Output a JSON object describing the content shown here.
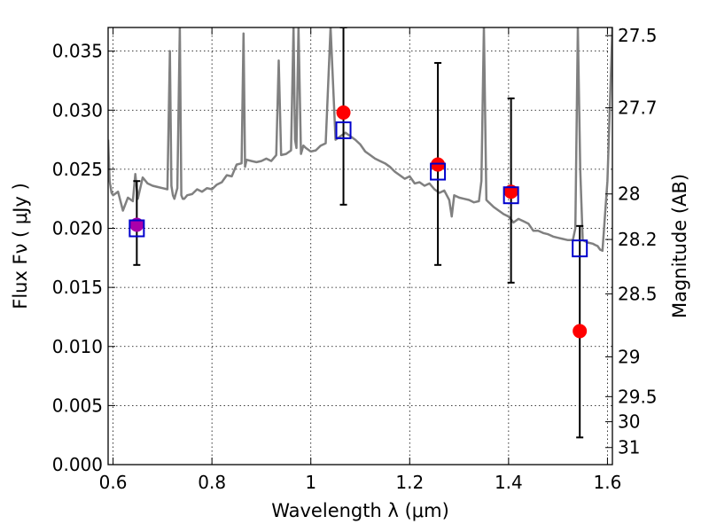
{
  "chart_data": {
    "type": "scatter",
    "xlabel": "Wavelength  λ (μm)",
    "ylabel": "Flux  Fν  ( μJy )",
    "y2label": "Magnitude (AB)",
    "xlim": [
      0.59,
      1.61
    ],
    "ylim": [
      0.0,
      0.037
    ],
    "grid": true,
    "x_ticks": [
      {
        "value": 0.6,
        "label": "0.6"
      },
      {
        "value": 0.8,
        "label": "0.8"
      },
      {
        "value": 1.0,
        "label": "1"
      },
      {
        "value": 1.2,
        "label": "1.2"
      },
      {
        "value": 1.4,
        "label": "1.4"
      },
      {
        "value": 1.6,
        "label": "1.6"
      }
    ],
    "y_ticks": [
      {
        "value": 0.0,
        "label": "0.000"
      },
      {
        "value": 0.005,
        "label": "0.005"
      },
      {
        "value": 0.01,
        "label": "0.010"
      },
      {
        "value": 0.015,
        "label": "0.015"
      },
      {
        "value": 0.02,
        "label": "0.020"
      },
      {
        "value": 0.025,
        "label": "0.025"
      },
      {
        "value": 0.03,
        "label": "0.030"
      },
      {
        "value": 0.035,
        "label": "0.035"
      }
    ],
    "y2_ticks": [
      {
        "mag": 27.5,
        "label": "27.5"
      },
      {
        "mag": 27.7,
        "label": "27.7"
      },
      {
        "mag": 28,
        "label": "28"
      },
      {
        "mag": 28.2,
        "label": "28.2"
      },
      {
        "mag": 28.5,
        "label": "28.5"
      },
      {
        "mag": 29,
        "label": "29"
      },
      {
        "mag": 29.5,
        "label": "29.5"
      },
      {
        "mag": 30,
        "label": "30"
      },
      {
        "mag": 31,
        "label": "31"
      }
    ],
    "colors": {
      "model_line": "#808080",
      "observed_points": "#ff0000",
      "model_points": "#0000cc",
      "first_point": "#aa00aa",
      "error_bars": "#000000"
    },
    "model_spectrum": {
      "x": [
        0.59,
        0.593,
        0.597,
        0.6,
        0.61,
        0.62,
        0.63,
        0.64,
        0.645,
        0.65,
        0.66,
        0.67,
        0.68,
        0.69,
        0.7,
        0.71,
        0.715,
        0.718,
        0.721,
        0.724,
        0.73,
        0.735,
        0.738,
        0.741,
        0.744,
        0.75,
        0.76,
        0.77,
        0.78,
        0.79,
        0.8,
        0.81,
        0.82,
        0.83,
        0.84,
        0.85,
        0.86,
        0.864,
        0.867,
        0.87,
        0.88,
        0.89,
        0.9,
        0.91,
        0.92,
        0.93,
        0.935,
        0.94,
        0.95,
        0.96,
        0.965,
        0.968,
        0.971,
        0.975,
        0.98,
        0.985,
        0.99,
        1.0,
        1.01,
        1.02,
        1.03,
        1.04,
        1.05,
        1.06,
        1.07,
        1.08,
        1.09,
        1.1,
        1.11,
        1.12,
        1.13,
        1.14,
        1.15,
        1.16,
        1.17,
        1.18,
        1.19,
        1.2,
        1.21,
        1.22,
        1.23,
        1.24,
        1.25,
        1.26,
        1.27,
        1.28,
        1.285,
        1.29,
        1.3,
        1.31,
        1.32,
        1.33,
        1.34,
        1.345,
        1.35,
        1.355,
        1.36,
        1.37,
        1.38,
        1.39,
        1.4,
        1.41,
        1.42,
        1.43,
        1.44,
        1.45,
        1.46,
        1.47,
        1.48,
        1.49,
        1.5,
        1.51,
        1.52,
        1.53,
        1.535,
        1.54,
        1.545,
        1.55,
        1.56,
        1.57,
        1.575,
        1.58,
        1.585,
        1.59,
        1.6,
        1.61
      ],
      "y": [
        0.0275,
        0.024,
        0.023,
        0.0228,
        0.0231,
        0.0215,
        0.0226,
        0.0223,
        0.0246,
        0.0225,
        0.0243,
        0.0238,
        0.0236,
        0.0235,
        0.0234,
        0.0233,
        0.035,
        0.0236,
        0.0228,
        0.0225,
        0.0234,
        0.037,
        0.0228,
        0.0225,
        0.0225,
        0.0228,
        0.0229,
        0.0233,
        0.0231,
        0.0234,
        0.0233,
        0.0237,
        0.0239,
        0.0245,
        0.0244,
        0.0254,
        0.0255,
        0.0365,
        0.0252,
        0.0258,
        0.0257,
        0.0256,
        0.0257,
        0.0259,
        0.0257,
        0.0262,
        0.0342,
        0.0262,
        0.0263,
        0.0266,
        0.037,
        0.0275,
        0.0268,
        0.037,
        0.0263,
        0.027,
        0.0268,
        0.0265,
        0.0266,
        0.027,
        0.0272,
        0.037,
        0.0275,
        0.0278,
        0.0281,
        0.0278,
        0.0275,
        0.0271,
        0.0265,
        0.0262,
        0.0259,
        0.0257,
        0.0255,
        0.0252,
        0.0248,
        0.0245,
        0.0242,
        0.0244,
        0.0238,
        0.0239,
        0.0236,
        0.0238,
        0.0233,
        0.023,
        0.0232,
        0.0224,
        0.021,
        0.0228,
        0.0226,
        0.0225,
        0.0224,
        0.0222,
        0.0223,
        0.024,
        0.037,
        0.0224,
        0.0222,
        0.0218,
        0.0215,
        0.0212,
        0.021,
        0.0205,
        0.0208,
        0.0206,
        0.0204,
        0.0198,
        0.0198,
        0.0196,
        0.0195,
        0.0193,
        0.0192,
        0.0191,
        0.019,
        0.019,
        0.02,
        0.037,
        0.025,
        0.019,
        0.0188,
        0.0187,
        0.0186,
        0.0185,
        0.0182,
        0.0181,
        0.024,
        0.037
      ]
    },
    "observed_points": [
      {
        "x": 0.648,
        "y": 0.0203,
        "err_low": 0.0169,
        "err_high": 0.024
      },
      {
        "x": 1.066,
        "y": 0.0298,
        "err_low": 0.022,
        "err_high": 0.037
      },
      {
        "x": 1.257,
        "y": 0.0254,
        "err_low": 0.0169,
        "err_high": 0.034
      },
      {
        "x": 1.405,
        "y": 0.0231,
        "err_low": 0.0154,
        "err_high": 0.031
      },
      {
        "x": 1.544,
        "y": 0.0113,
        "err_low": 0.0023,
        "err_high": 0.0202
      }
    ],
    "model_points": [
      {
        "x": 0.648,
        "y": 0.02
      },
      {
        "x": 1.066,
        "y": 0.0283
      },
      {
        "x": 1.257,
        "y": 0.0248
      },
      {
        "x": 1.405,
        "y": 0.0228
      },
      {
        "x": 1.544,
        "y": 0.0183
      }
    ]
  }
}
